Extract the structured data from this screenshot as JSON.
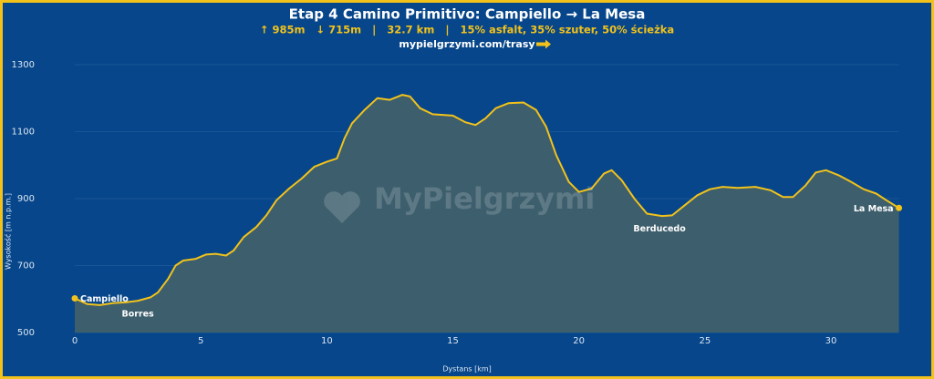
{
  "chart_data": {
    "type": "area",
    "title": "Etap 4 Camino Primitivo: Campiello → La Mesa",
    "subtitle": "↑ 985m   ↓ 715m   |   32.7 km   |   15% asfalt, 35% szuter, 50% ścieżka",
    "link": "mypielgrzymi.com/trasy",
    "watermark": "MyPielgrzymi",
    "x_label": "Dystans [km]",
    "y_label": "Wysokość [m n.p.m.]",
    "color": "#f2c21b",
    "fill": "#3d5e6c",
    "x": [
      0,
      0.5,
      1,
      1.5,
      2,
      2.5,
      3,
      3.3,
      3.7,
      4,
      4.3,
      4.8,
      5.2,
      5.6,
      6,
      6.3,
      6.7,
      7.2,
      7.6,
      8,
      8.5,
      9,
      9.5,
      10,
      10.4,
      10.7,
      11,
      11.5,
      12,
      12.5,
      13,
      13.3,
      13.7,
      14.2,
      15,
      15.5,
      15.9,
      16.3,
      16.7,
      17.2,
      17.8,
      18.3,
      18.7,
      19.1,
      19.6,
      20,
      20.5,
      21,
      21.3,
      21.7,
      22.2,
      22.7,
      23.3,
      23.7,
      24.2,
      24.7,
      25.2,
      25.7,
      26.3,
      27,
      27.6,
      28.1,
      28.5,
      29,
      29.4,
      29.8,
      30.3,
      30.8,
      31.3,
      31.8,
      32.2,
      32.7
    ],
    "values": [
      602,
      585,
      582,
      588,
      590,
      595,
      605,
      620,
      660,
      700,
      715,
      720,
      733,
      735,
      730,
      745,
      785,
      815,
      850,
      895,
      930,
      960,
      995,
      1010,
      1020,
      1080,
      1125,
      1165,
      1200,
      1195,
      1210,
      1205,
      1170,
      1152,
      1148,
      1128,
      1120,
      1140,
      1170,
      1185,
      1187,
      1165,
      1115,
      1030,
      950,
      920,
      930,
      975,
      985,
      955,
      900,
      855,
      848,
      850,
      880,
      910,
      928,
      935,
      932,
      935,
      925,
      905,
      905,
      940,
      978,
      985,
      970,
      950,
      928,
      915,
      895,
      872
    ],
    "annotations": [
      {
        "x": 0,
        "text": "Campiello"
      },
      {
        "x": 2.5,
        "text": "Borres"
      },
      {
        "x": 23.2,
        "text": "Berducedo"
      },
      {
        "x": 32.7,
        "text": "La Mesa"
      }
    ],
    "xlim": [
      0,
      32.7
    ],
    "ylim": [
      500,
      1300
    ],
    "xticks": [
      0,
      5,
      10,
      15,
      20,
      25,
      30
    ],
    "yticks": [
      500,
      700,
      900,
      1100,
      1300
    ],
    "grid": true
  }
}
